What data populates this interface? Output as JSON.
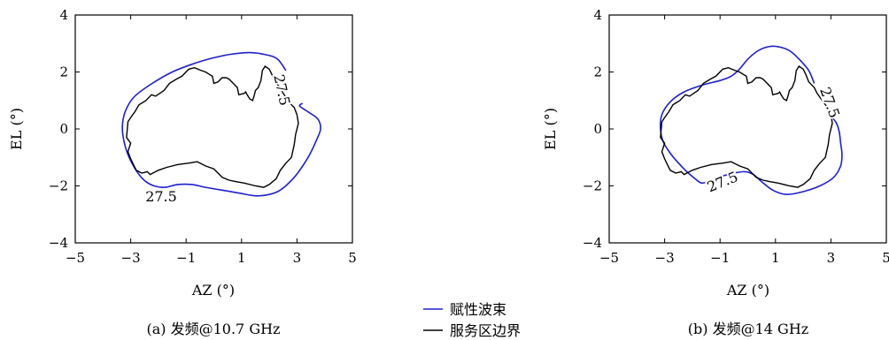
{
  "chart_data": [
    {
      "type": "line",
      "caption": "(a) 发频@10.7 GHz",
      "xlabel": "AZ (°)",
      "ylabel": "EL (°)",
      "xlim": [
        -5,
        5
      ],
      "ylim": [
        -4,
        4
      ],
      "xticks": [
        "−5",
        "−3",
        "−1",
        "1",
        "3",
        "5"
      ],
      "yticks": [
        "4",
        "2",
        "0",
        "−2",
        "−4"
      ],
      "grid": false,
      "contour_labels": [
        "27.5",
        "27.5"
      ],
      "series": [
        {
          "name": "赋性波束",
          "color": "#1f1fd0",
          "x": [
            2.6,
            2.3,
            1.9,
            1.3,
            0.6,
            0.0,
            -0.7,
            -1.5,
            -2.3,
            -2.9,
            -3.2,
            -3.3,
            -3.25,
            -3.1,
            -2.9,
            -2.7,
            -2.45,
            -2.15,
            -1.75,
            -1.3,
            -0.8,
            -0.3,
            0.3,
            0.9,
            1.6,
            2.3,
            2.9,
            3.4,
            3.7,
            3.85,
            3.75,
            3.4,
            3.1,
            3.2
          ],
          "y": [
            2.05,
            2.45,
            2.6,
            2.68,
            2.62,
            2.5,
            2.3,
            2.0,
            1.55,
            1.1,
            0.6,
            0.1,
            -0.4,
            -0.9,
            -1.3,
            -1.6,
            -1.85,
            -2.0,
            -2.05,
            -1.95,
            -1.95,
            -2.05,
            -2.15,
            -2.25,
            -2.35,
            -2.2,
            -1.7,
            -1.0,
            -0.4,
            0.0,
            0.35,
            0.6,
            0.8,
            0.9
          ]
        },
        {
          "name": "服务区边界",
          "color": "#000000",
          "x": [
            1.15,
            1.1,
            0.9,
            0.85,
            0.7,
            0.55,
            0.45,
            0.3,
            0.15,
            0.0,
            -0.05,
            -0.3,
            -0.45,
            -0.7,
            -0.9,
            -1.15,
            -1.35,
            -1.6,
            -1.8,
            -2.1,
            -2.25,
            -2.45,
            -2.7,
            -2.85,
            -3.0,
            -3.1,
            -3.15,
            -3.0,
            -3.1,
            -3.0,
            -2.9,
            -2.8,
            -2.6,
            -2.4,
            -2.3,
            -2.0,
            -1.7,
            -1.3,
            -0.9,
            -0.6,
            -0.3,
            0.0,
            0.15,
            0.3,
            0.55,
            0.8,
            1.1,
            1.5,
            1.8,
            2.0,
            2.25,
            2.4,
            2.6,
            2.8,
            2.9,
            2.95,
            3.05,
            3.0,
            2.9,
            2.8,
            2.65,
            2.5,
            2.4,
            2.2,
            2.1,
            2.0,
            1.85,
            1.75,
            1.7,
            1.6,
            1.5,
            1.45,
            1.4,
            1.3,
            1.2,
            1.15
          ],
          "y": [
            1.3,
            1.25,
            1.2,
            1.45,
            1.6,
            1.75,
            1.8,
            1.8,
            1.65,
            1.6,
            1.85,
            2.0,
            2.05,
            2.15,
            2.1,
            1.85,
            1.75,
            1.6,
            1.35,
            1.15,
            1.2,
            1.0,
            0.85,
            0.6,
            0.4,
            0.25,
            -0.3,
            -0.5,
            -0.8,
            -1.05,
            -1.25,
            -1.45,
            -1.55,
            -1.5,
            -1.6,
            -1.45,
            -1.35,
            -1.25,
            -1.2,
            -1.15,
            -1.3,
            -1.4,
            -1.55,
            -1.7,
            -1.8,
            -1.85,
            -1.9,
            -2.0,
            -2.05,
            -1.95,
            -1.75,
            -1.45,
            -1.2,
            -1.0,
            -0.55,
            -0.2,
            0.2,
            0.5,
            0.75,
            0.85,
            1.05,
            1.25,
            1.45,
            1.65,
            1.9,
            2.1,
            2.2,
            2.05,
            1.7,
            1.45,
            1.35,
            1.15,
            1.0,
            1.05,
            1.2,
            1.3
          ]
        }
      ]
    },
    {
      "type": "line",
      "caption": "(b) 发频@14 GHz",
      "xlabel": "AZ (°)",
      "ylabel": "EL (°)",
      "xlim": [
        -5,
        5
      ],
      "ylim": [
        -4,
        4
      ],
      "xticks": [
        "−5",
        "−3",
        "−1",
        "1",
        "3",
        "5"
      ],
      "yticks": [
        "4",
        "2",
        "0",
        "−2",
        "−4"
      ],
      "grid": false,
      "contour_labels": [
        "27.5",
        "27.5"
      ],
      "series": [
        {
          "name": "赋性波束",
          "color": "#1f1fd0",
          "x": [
            2.4,
            2.2,
            1.9,
            1.5,
            1.0,
            0.6,
            0.3,
            0.0,
            -0.3,
            -0.6,
            -1.0,
            -1.6,
            -2.3,
            -2.8,
            -3.1,
            -3.15,
            -3.05,
            -2.8,
            -2.5,
            -2.2,
            -1.9,
            -1.65,
            -1.3,
            -0.9,
            -0.5,
            -0.1,
            0.2,
            0.5,
            0.9,
            1.4,
            2.0,
            2.6,
            3.1,
            3.35,
            3.4,
            3.35,
            3.3,
            3.2,
            3.05,
            3.0
          ],
          "y": [
            1.6,
            2.05,
            2.4,
            2.75,
            2.9,
            2.85,
            2.7,
            2.45,
            2.1,
            1.85,
            1.7,
            1.55,
            1.3,
            0.95,
            0.5,
            0.0,
            -0.45,
            -0.85,
            -1.2,
            -1.5,
            -1.75,
            -1.9,
            -1.8,
            -1.65,
            -1.55,
            -1.5,
            -1.6,
            -1.85,
            -2.15,
            -2.3,
            -2.2,
            -2.0,
            -1.7,
            -1.3,
            -0.9,
            -0.5,
            -0.1,
            0.2,
            0.4,
            0.5
          ]
        },
        {
          "name": "服务区边界",
          "color": "#000000",
          "x": [
            1.15,
            1.1,
            0.9,
            0.85,
            0.7,
            0.55,
            0.45,
            0.3,
            0.15,
            0.0,
            -0.05,
            -0.3,
            -0.45,
            -0.7,
            -0.9,
            -1.15,
            -1.35,
            -1.6,
            -1.8,
            -2.1,
            -2.25,
            -2.45,
            -2.7,
            -2.85,
            -3.0,
            -3.1,
            -3.15,
            -3.0,
            -3.1,
            -3.0,
            -2.9,
            -2.8,
            -2.6,
            -2.4,
            -2.3,
            -2.0,
            -1.7,
            -1.3,
            -0.9,
            -0.6,
            -0.3,
            0.0,
            0.15,
            0.3,
            0.55,
            0.8,
            1.1,
            1.5,
            1.8,
            2.0,
            2.25,
            2.4,
            2.6,
            2.8,
            2.9,
            2.95,
            3.05,
            3.0,
            2.9,
            2.8,
            2.65,
            2.5,
            2.4,
            2.2,
            2.1,
            2.0,
            1.85,
            1.75,
            1.7,
            1.6,
            1.5,
            1.45,
            1.4,
            1.3,
            1.2,
            1.15
          ],
          "y": [
            1.3,
            1.25,
            1.2,
            1.45,
            1.6,
            1.75,
            1.8,
            1.8,
            1.65,
            1.6,
            1.85,
            2.0,
            2.05,
            2.15,
            2.1,
            1.85,
            1.75,
            1.6,
            1.35,
            1.15,
            1.2,
            1.0,
            0.85,
            0.6,
            0.4,
            0.25,
            -0.3,
            -0.5,
            -0.8,
            -1.05,
            -1.25,
            -1.45,
            -1.55,
            -1.5,
            -1.6,
            -1.45,
            -1.35,
            -1.25,
            -1.2,
            -1.15,
            -1.3,
            -1.4,
            -1.55,
            -1.7,
            -1.8,
            -1.85,
            -1.9,
            -2.0,
            -2.05,
            -1.95,
            -1.75,
            -1.45,
            -1.2,
            -1.0,
            -0.55,
            -0.2,
            0.2,
            0.5,
            0.75,
            0.85,
            1.05,
            1.25,
            1.45,
            1.65,
            1.9,
            2.1,
            2.2,
            2.05,
            1.7,
            1.45,
            1.35,
            1.15,
            1.0,
            1.05,
            1.2,
            1.3
          ]
        }
      ]
    }
  ],
  "legend": {
    "placement": "bottom-center",
    "items": [
      {
        "label": "赋性波束",
        "color": "#1f1fd0"
      },
      {
        "label": "服务区边界",
        "color": "#000000"
      }
    ]
  }
}
